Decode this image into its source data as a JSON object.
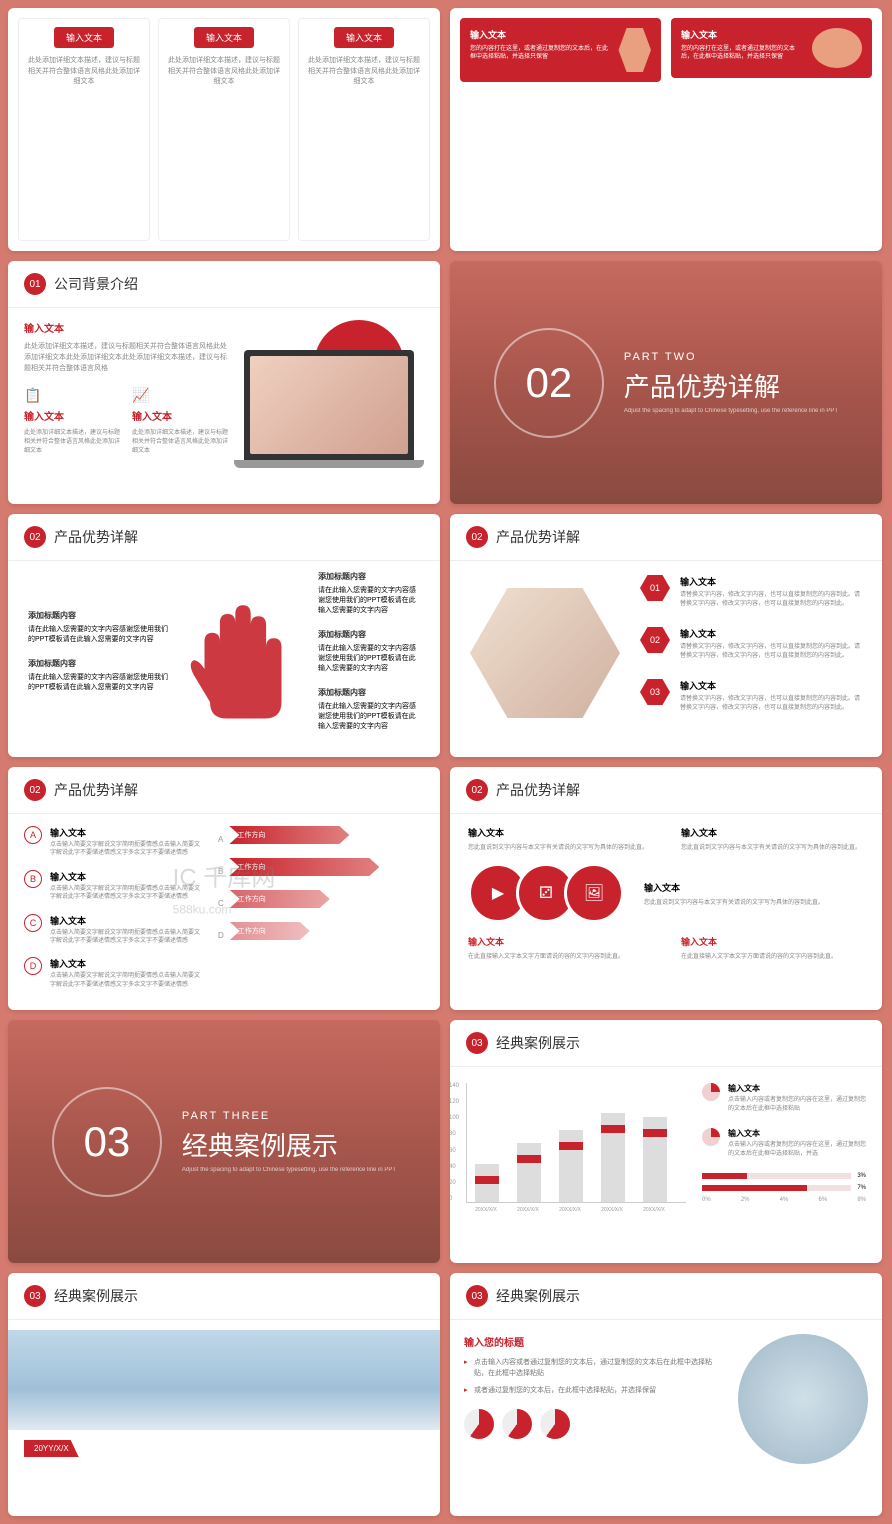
{
  "colors": {
    "primary": "#c8232c",
    "bg": "#d47a6e",
    "text": "#666",
    "muted": "#888"
  },
  "s1": {
    "btn": "输入文本",
    "desc": "此处添加详细文本描述，建议与标题相关并符合整体语言风格此处添加详细文本"
  },
  "s2": {
    "label": "输入文本",
    "desc": "您的内容打在这里，或者通过复制您的文本后，在此框中选择粘贴，并选择只保留"
  },
  "s3": {
    "badge": "01",
    "title": "公司背景介绍",
    "sub": "输入文本",
    "desc": "此处添加详细文本描述，建议与标题相关并符合整体语言风格此处添加详细文本此处添加详细文本此处添加详细文本描述，建议与标题相关并符合整体语言风格",
    "col_label": "输入文本",
    "col_desc": "此处添加详细文本描述，建议与标题相关并符合整体语言风格此处添加详细文本"
  },
  "s4": {
    "part": "PART TWO",
    "num": "02",
    "title": "产品优势详解",
    "sub": "Adjust the spacing to adapt to Chinese typesetting, use the reference line in PPT"
  },
  "s5": {
    "badge": "02",
    "title": "产品优势详解",
    "h": "添加标题内容",
    "d": "请在此输入您需要的文字内容感谢您使用我们的PPT模板请在此输入您需要的文字内容"
  },
  "s6": {
    "badge": "02",
    "title": "产品优势详解",
    "items": [
      {
        "n": "01",
        "t": "输入文本",
        "d": "请替换文字内容，修改文字内容，也可以直接复制您的内容到此。请替换文字内容，修改文字内容，也可以直接复制您的内容到此。"
      },
      {
        "n": "02",
        "t": "输入文本",
        "d": "请替换文字内容，修改文字内容，也可以直接复制您的内容到此。请替换文字内容，修改文字内容，也可以直接复制您的内容到此。"
      },
      {
        "n": "03",
        "t": "输入文本",
        "d": "请替换文字内容，修改文字内容，也可以直接复制您的内容到此。请替换文字内容，修改文字内容，也可以直接复制您的内容到此。"
      }
    ]
  },
  "s7": {
    "badge": "02",
    "title": "产品优势详解",
    "rows": [
      {
        "l": "A",
        "t": "输入文本",
        "d": "点击输入简要文字解说文字简明扼要情感点击输入简要文字解说此字不要储述情感文字多余文字不要储述情感"
      },
      {
        "l": "B",
        "t": "输入文本",
        "d": "点击输入简要文字解说文字简明扼要情感点击输入简要文字解说此字不要储述情感文字多余文字不要储述情感"
      },
      {
        "l": "C",
        "t": "输入文本",
        "d": "点击输入简要文字解说文字简明扼要情感点击输入简要文字解说此字不要储述情感文字多余文字不要储述情感"
      },
      {
        "l": "D",
        "t": "输入文本",
        "d": "点击输入简要文字解说文字简明扼要情感点击输入简要文字解说此字不要储述情感文字多余文字不要储述情感"
      }
    ],
    "arrows": [
      "A",
      "B",
      "C",
      "D"
    ],
    "alabel": "工作方向"
  },
  "s8": {
    "badge": "02",
    "title": "产品优势详解",
    "t": "输入文本",
    "d": "您此直说到文字内容与本文字有关请说的文字写为具体的容到此直。",
    "bot_d": "在此直接输入文字本文字方面请说的容的文字内容到此直。"
  },
  "s9": {
    "part": "PART THREE",
    "num": "03",
    "title": "经典案例展示",
    "sub": "Adjust the spacing to adapt to Chinese typesetting, use the reference line in PPT"
  },
  "s10": {
    "badge": "03",
    "title": "经典案例展示",
    "ylabels": [
      "140",
      "120",
      "100",
      "80",
      "60",
      "40",
      "20",
      "0"
    ],
    "xlabels": [
      "20XX/X/X",
      "20XX/X/X",
      "20XX/X/X",
      "20XX/X/X",
      "20XX/X/X"
    ],
    "bars": [
      45,
      70,
      85,
      105,
      100
    ],
    "ymax": 140,
    "t": "输入文本",
    "d": "点击输入内容或者复制您的内容在这里，通过复制您的文本后在此框中选择粘贴",
    "d2": "点击输入内容或者复制您的内容在这里，通过复制您的文本后在此框中选择粘贴，并选",
    "hbars": [
      {
        "v": 3,
        "l": "3%"
      },
      {
        "v": 7,
        "l": "7%"
      }
    ],
    "xscale": [
      "0%",
      "2%",
      "4%",
      "6%",
      "8%"
    ]
  },
  "s11": {
    "badge": "03",
    "title": "经典案例展示",
    "year": "20YY/X/X"
  },
  "s12": {
    "badge": "03",
    "title": "经典案例展示",
    "h": "输入您的标题",
    "li1": "点击输入内容或者通过复制您的文本后，通过复制您的文本后在此框中选择粘贴，在此框中选择粘贴",
    "li2": "或者通过复制您的文本后，在此框中选择粘贴，并选择保留"
  },
  "watermark": "千库网"
}
